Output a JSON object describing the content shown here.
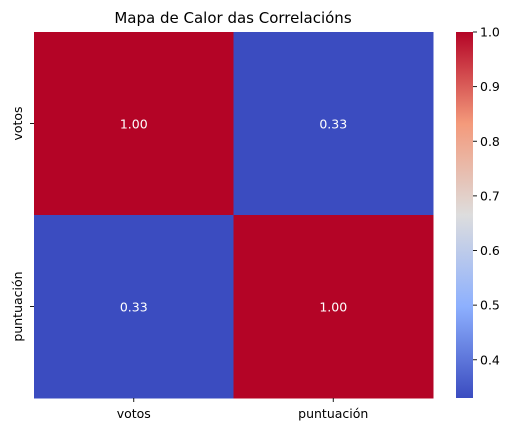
{
  "chart_data": {
    "type": "heatmap",
    "title": "Mapa de Calor das Correlacións",
    "row_labels": [
      "votos",
      "puntuación"
    ],
    "col_labels": [
      "votos",
      "puntuación"
    ],
    "values": [
      [
        1.0,
        0.33
      ],
      [
        0.33,
        1.0
      ]
    ],
    "cell_labels": [
      [
        "1.00",
        "0.33"
      ],
      [
        "0.33",
        "1.00"
      ]
    ],
    "colormap": "coolwarm",
    "colorbar": {
      "range": [
        0.33,
        1.0
      ],
      "ticks": [
        "0.4",
        "0.5",
        "0.6",
        "0.7",
        "0.8",
        "0.9",
        "1.0"
      ],
      "tick_values": [
        0.4,
        0.5,
        0.6,
        0.7,
        0.8,
        0.9,
        1.0
      ]
    },
    "colors": {
      "low": "#3b4cc0",
      "mid": "#dddddd",
      "high": "#b40426"
    },
    "grid": false
  }
}
